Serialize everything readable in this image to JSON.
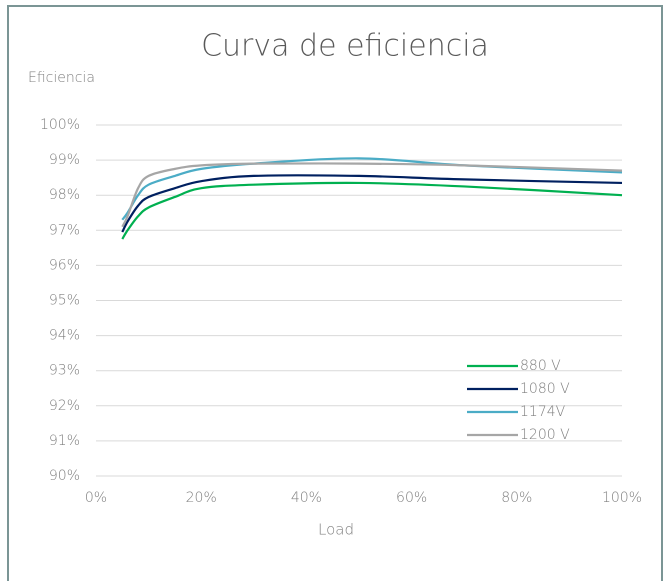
{
  "chart_data": {
    "type": "line",
    "title": "Curva de eficiencia",
    "y_label": "Eficiencia",
    "x_label": "Load",
    "x": [
      5,
      6,
      8,
      10,
      15,
      20,
      30,
      50,
      70,
      100
    ],
    "series": [
      {
        "name": "880 V",
        "color": "#00b050",
        "values": [
          96.75,
          97.0,
          97.4,
          97.65,
          97.95,
          98.2,
          98.3,
          98.35,
          98.25,
          98.0
        ]
      },
      {
        "name": "1080 V",
        "color": "#002060",
        "values": [
          96.95,
          97.25,
          97.7,
          97.95,
          98.2,
          98.4,
          98.55,
          98.55,
          98.45,
          98.35
        ]
      },
      {
        "name": "1174V",
        "color": "#4bacc6",
        "values": [
          97.3,
          97.5,
          98.0,
          98.3,
          98.55,
          98.75,
          98.9,
          99.05,
          98.85,
          98.65
        ]
      },
      {
        "name": "1200 V",
        "color": "#a6a6a6",
        "values": [
          97.1,
          97.4,
          98.2,
          98.55,
          98.75,
          98.85,
          98.9,
          98.9,
          98.85,
          98.7
        ]
      }
    ],
    "xlim": [
      0,
      100
    ],
    "ylim": [
      90,
      100
    ],
    "xticks": [
      {
        "value": 0,
        "label": "0%"
      },
      {
        "value": 20,
        "label": "20%"
      },
      {
        "value": 40,
        "label": "40%"
      },
      {
        "value": 60,
        "label": "60%"
      },
      {
        "value": 80,
        "label": "80%"
      },
      {
        "value": 100,
        "label": "100%"
      }
    ],
    "yticks": [
      {
        "value": 90,
        "label": "90%"
      },
      {
        "value": 91,
        "label": "91%"
      },
      {
        "value": 92,
        "label": "92%"
      },
      {
        "value": 93,
        "label": "93%"
      },
      {
        "value": 94,
        "label": "94%"
      },
      {
        "value": 95,
        "label": "95%"
      },
      {
        "value": 96,
        "label": "96%"
      },
      {
        "value": 97,
        "label": "97%"
      },
      {
        "value": 98,
        "label": "98%"
      },
      {
        "value": 99,
        "label": "99%"
      },
      {
        "value": 100,
        "label": "100%"
      }
    ],
    "grid": true,
    "legend": "lower right"
  }
}
